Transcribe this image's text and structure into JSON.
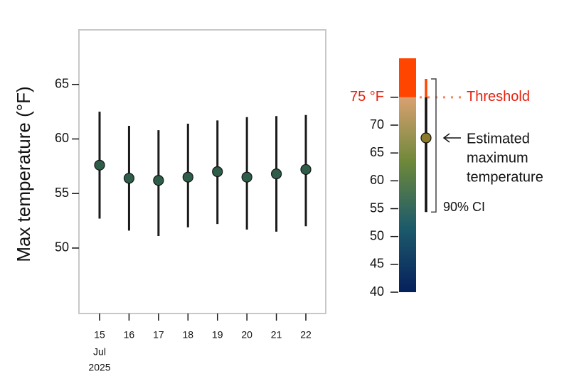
{
  "chart_data": [
    {
      "type": "pointrange",
      "y_label": "Max temperature (°F)",
      "categories": [
        "15",
        "16",
        "17",
        "18",
        "19",
        "20",
        "21",
        "22"
      ],
      "month": "Jul",
      "year": "2025",
      "ylim": [
        44,
        70
      ],
      "yticks": [
        50,
        55,
        60,
        65
      ],
      "color": "#2e5e4a",
      "values": [
        57.6,
        56.4,
        56.2,
        56.5,
        57.0,
        56.5,
        56.8,
        57.2
      ],
      "lower": [
        52.7,
        51.6,
        51.1,
        51.9,
        52.2,
        51.7,
        51.5,
        52.0
      ],
      "upper": [
        62.5,
        61.2,
        60.8,
        61.4,
        61.7,
        62.0,
        62.1,
        62.2
      ]
    },
    {
      "type": "legend",
      "ylim": [
        40,
        82
      ],
      "yticks": [
        40,
        45,
        50,
        55,
        60,
        65,
        70
      ],
      "threshold": {
        "value": 75,
        "label": "75 °F"
      },
      "threshold_text": "Threshold",
      "gradient": [
        "#06205c",
        "#1d5b6b",
        "#6e883a",
        "#d9a070"
      ],
      "above_color": "#ff4500",
      "estimate": 67.7,
      "estimate_color": "#8a7a2a",
      "ci": [
        54.4,
        78.3
      ],
      "estimate_label": [
        "Estimated",
        "maximum",
        "temperature"
      ],
      "ci_label": "90% CI"
    }
  ]
}
